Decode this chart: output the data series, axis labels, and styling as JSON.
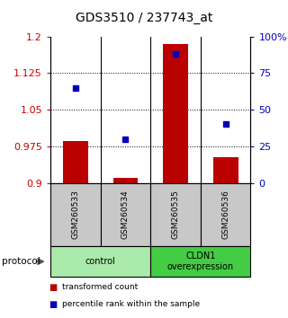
{
  "title": "GDS3510 / 237743_at",
  "samples": [
    "GSM260533",
    "GSM260534",
    "GSM260535",
    "GSM260536"
  ],
  "transformed_counts": [
    0.985,
    0.91,
    1.185,
    0.953
  ],
  "percentile_ranks": [
    65,
    30,
    88,
    40
  ],
  "ylim_left": [
    0.9,
    1.2
  ],
  "ylim_right": [
    0,
    100
  ],
  "yticks_left": [
    0.9,
    0.975,
    1.05,
    1.125,
    1.2
  ],
  "yticks_right": [
    0,
    25,
    50,
    75,
    100
  ],
  "ytick_labels_left": [
    "0.9",
    "0.975",
    "1.05",
    "1.125",
    "1.2"
  ],
  "ytick_labels_right": [
    "0",
    "25",
    "50",
    "75",
    "100%"
  ],
  "bar_color": "#BB0000",
  "dot_color": "#0000BB",
  "groups": [
    {
      "label": "control",
      "samples": [
        0,
        1
      ],
      "color": "#AAEAAA"
    },
    {
      "label": "CLDN1\noverexpression",
      "samples": [
        2,
        3
      ],
      "color": "#44CC44"
    }
  ],
  "protocol_label": "protocol",
  "legend_bar_label": "transformed count",
  "legend_dot_label": "percentile rank within the sample",
  "bar_width": 0.5,
  "tick_label_color_left": "#CC0000",
  "tick_label_color_right": "#0000CC",
  "background_color": "#ffffff",
  "sample_box_color": "#C8C8C8",
  "grid_color": "#000000"
}
